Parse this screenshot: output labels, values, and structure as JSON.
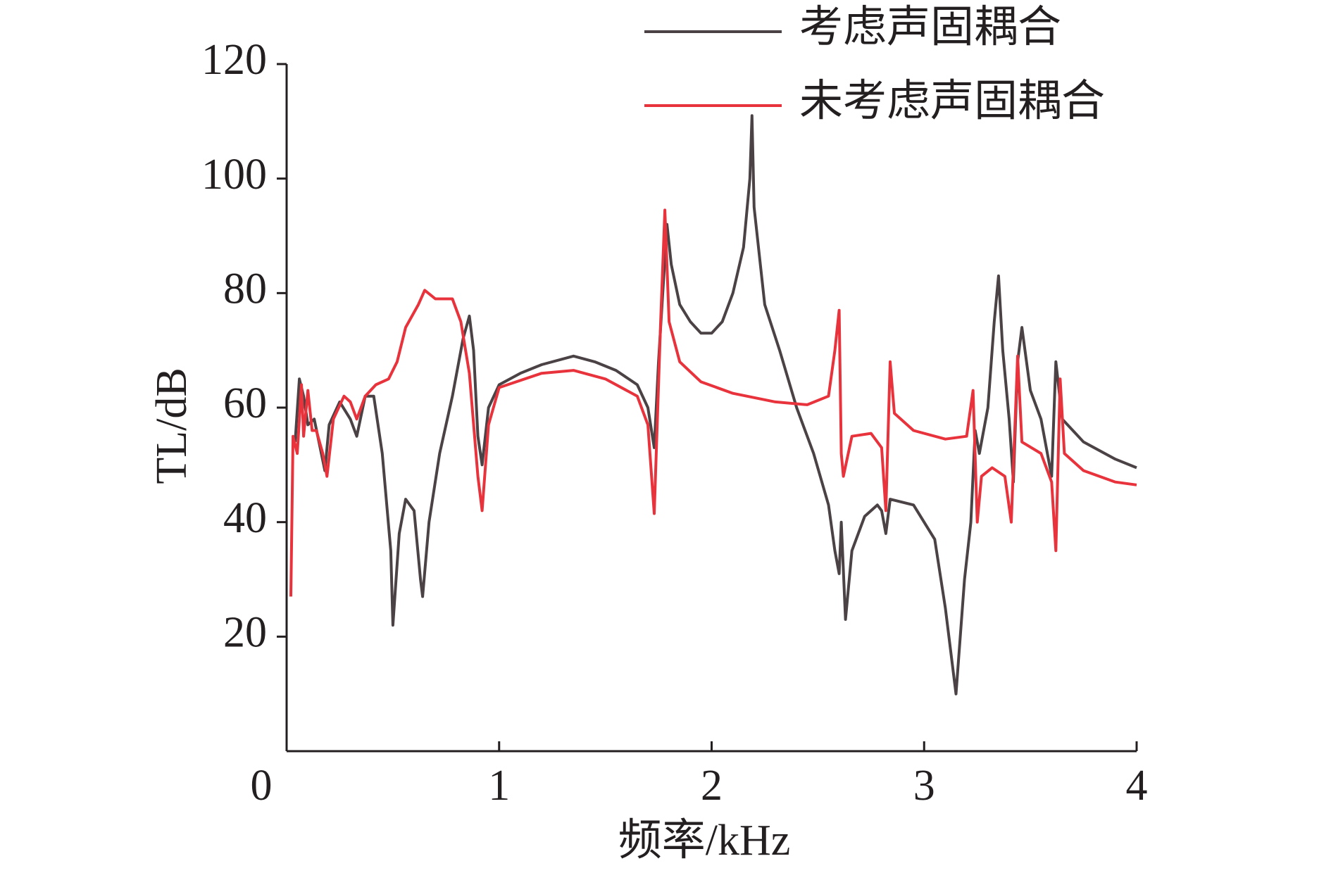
{
  "chart_data": {
    "type": "line",
    "xlabel": "频率/kHz",
    "ylabel": "TL/dB",
    "xlim": [
      0,
      4
    ],
    "xticks": [
      0,
      1,
      2,
      3,
      4
    ],
    "ylim": [
      0,
      120
    ],
    "yticks": [
      20,
      40,
      60,
      80,
      100,
      120
    ],
    "legend": "top-right",
    "series": [
      {
        "name": "考虑声固耦合",
        "color": "#4a4244",
        "x": [
          0.04,
          0.06,
          0.08,
          0.1,
          0.13,
          0.18,
          0.2,
          0.25,
          0.3,
          0.33,
          0.37,
          0.41,
          0.45,
          0.49,
          0.5,
          0.53,
          0.56,
          0.6,
          0.63,
          0.64,
          0.67,
          0.72,
          0.78,
          0.83,
          0.86,
          0.88,
          0.9,
          0.92,
          0.95,
          1.0,
          1.1,
          1.2,
          1.35,
          1.45,
          1.55,
          1.65,
          1.7,
          1.73,
          1.75,
          1.77,
          1.79,
          1.81,
          1.85,
          1.9,
          1.95,
          2.0,
          2.05,
          2.1,
          2.15,
          2.18,
          2.19,
          2.2,
          2.25,
          2.32,
          2.4,
          2.48,
          2.55,
          2.58,
          2.6,
          2.61,
          2.63,
          2.66,
          2.72,
          2.78,
          2.8,
          2.82,
          2.84,
          2.95,
          3.05,
          3.1,
          3.15,
          3.19,
          3.22,
          3.24,
          3.26,
          3.3,
          3.33,
          3.35,
          3.37,
          3.4,
          3.42,
          3.44,
          3.46,
          3.5,
          3.55,
          3.6,
          3.62,
          3.65,
          3.75,
          3.9,
          4.0
        ],
        "values": [
          54,
          65,
          62,
          57,
          58,
          49,
          57,
          61,
          58,
          55,
          62,
          62,
          52,
          35,
          22,
          38,
          44,
          42,
          30,
          27,
          40,
          52,
          62,
          72,
          76,
          70,
          55,
          50,
          60,
          64,
          66,
          67.5,
          69,
          68,
          66.5,
          64,
          60,
          53,
          68,
          80,
          92,
          85,
          78,
          75,
          73,
          73,
          75,
          80,
          88,
          100,
          111,
          95,
          78,
          70,
          60,
          52,
          43,
          35,
          31,
          40,
          23,
          35,
          41,
          43,
          42,
          38,
          44,
          43,
          37,
          25,
          10,
          30,
          40,
          56,
          52,
          60,
          75,
          83,
          70,
          58,
          47,
          68,
          74,
          63,
          58,
          48,
          68,
          58,
          54,
          51,
          49.5
        ]
      },
      {
        "name": "未考虑声固耦合",
        "color": "#e8333c",
        "x": [
          0.02,
          0.03,
          0.05,
          0.07,
          0.08,
          0.1,
          0.12,
          0.14,
          0.17,
          0.19,
          0.22,
          0.27,
          0.3,
          0.33,
          0.37,
          0.42,
          0.48,
          0.52,
          0.56,
          0.62,
          0.65,
          0.7,
          0.78,
          0.82,
          0.86,
          0.9,
          0.92,
          0.95,
          1.0,
          1.2,
          1.35,
          1.5,
          1.65,
          1.7,
          1.73,
          1.76,
          1.78,
          1.8,
          1.85,
          1.95,
          2.1,
          2.3,
          2.45,
          2.55,
          2.58,
          2.6,
          2.61,
          2.62,
          2.66,
          2.75,
          2.8,
          2.82,
          2.84,
          2.86,
          2.95,
          3.1,
          3.2,
          3.23,
          3.25,
          3.27,
          3.32,
          3.38,
          3.41,
          3.44,
          3.46,
          3.55,
          3.6,
          3.62,
          3.64,
          3.66,
          3.75,
          3.9,
          4.0
        ],
        "values": [
          27,
          55,
          52,
          64,
          55,
          63,
          56,
          56,
          52,
          48,
          58,
          62,
          61,
          58,
          62,
          64,
          65,
          68,
          74,
          78,
          80.5,
          79,
          79,
          75,
          66,
          48,
          42,
          57,
          63.5,
          66,
          66.5,
          65,
          62,
          57,
          41.5,
          75,
          94.5,
          75,
          68,
          64.5,
          62.5,
          61,
          60.5,
          62,
          70,
          77,
          52,
          48,
          55,
          55.5,
          53,
          42,
          68,
          59,
          56,
          54.5,
          55,
          63,
          40,
          48,
          49.5,
          48,
          40,
          69,
          54,
          52,
          47,
          35,
          65,
          52,
          49,
          47,
          46.5
        ]
      }
    ]
  }
}
